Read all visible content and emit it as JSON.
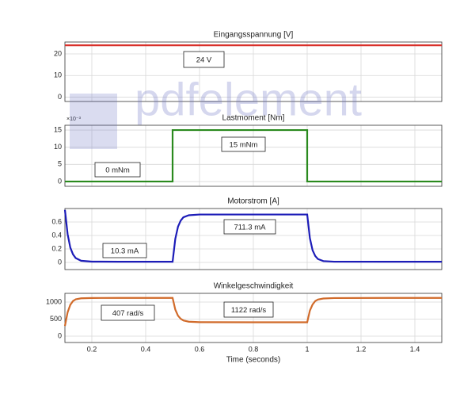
{
  "watermark": "pdfelement",
  "chart_data": [
    {
      "type": "line",
      "title": "Eingangsspannung [V]",
      "xlim": [
        0.1,
        1.5
      ],
      "xticks": [
        0.2,
        0.4,
        0.6,
        0.8,
        1,
        1.2,
        1.4
      ],
      "ylim": [
        -2,
        25.5
      ],
      "yticks": [
        0,
        10,
        20
      ],
      "grid": true,
      "x": [
        0.1,
        1.5
      ],
      "series": [
        {
          "color": "#d9312b",
          "values": [
            24,
            24
          ]
        }
      ],
      "annotations": [
        "24 V"
      ]
    },
    {
      "type": "line",
      "title": "Lastmoment [Nm]",
      "y_exponent": "×10⁻³",
      "xlim": [
        0.1,
        1.5
      ],
      "xticks": [
        0.2,
        0.4,
        0.6,
        0.8,
        1,
        1.2,
        1.4
      ],
      "ylim": [
        -1.4,
        16.4
      ],
      "yticks": [
        0,
        5,
        10,
        15
      ],
      "grid": true,
      "x": [
        0.1,
        0.5,
        0.5,
        1.0,
        1.0,
        1.5
      ],
      "series": [
        {
          "color": "#2a8a1e",
          "values": [
            0,
            0,
            15,
            15,
            0,
            0
          ]
        }
      ],
      "annotations": [
        "15 mNm",
        "0 mNm"
      ]
    },
    {
      "type": "line",
      "title": "Motorstrom [A]",
      "xlim": [
        0.1,
        1.5
      ],
      "xticks": [
        0.2,
        0.4,
        0.6,
        0.8,
        1,
        1.2,
        1.4
      ],
      "ylim": [
        -0.106,
        0.8
      ],
      "yticks": [
        0,
        0.2,
        0.4,
        0.6
      ],
      "grid": true,
      "x": [
        0.1,
        0.11,
        0.12,
        0.13,
        0.14,
        0.16,
        0.2,
        0.3,
        0.5,
        0.51,
        0.52,
        0.53,
        0.54,
        0.56,
        0.6,
        0.8,
        1.0,
        1.01,
        1.02,
        1.03,
        1.04,
        1.06,
        1.1,
        1.3,
        1.5
      ],
      "series": [
        {
          "color": "#1c1cb8",
          "values": [
            0.78,
            0.42,
            0.22,
            0.12,
            0.065,
            0.025,
            0.012,
            0.0103,
            0.0103,
            0.35,
            0.53,
            0.62,
            0.67,
            0.7,
            0.711,
            0.711,
            0.711,
            0.36,
            0.18,
            0.095,
            0.05,
            0.02,
            0.011,
            0.0103,
            0.0103
          ]
        }
      ],
      "annotations": [
        "711.3 mA",
        "10.3 mA"
      ]
    },
    {
      "type": "line",
      "title": "Winkelgeschwindigkeit",
      "xlabel": "Time (seconds)",
      "xlim": [
        0.1,
        1.5
      ],
      "xticks": [
        0.2,
        0.4,
        0.6,
        0.8,
        1,
        1.2,
        1.4
      ],
      "ylim": [
        -186,
        1256
      ],
      "yticks": [
        0,
        500,
        1000
      ],
      "grid": true,
      "x": [
        0.1,
        0.11,
        0.12,
        0.13,
        0.14,
        0.16,
        0.2,
        0.3,
        0.5,
        0.51,
        0.52,
        0.53,
        0.54,
        0.56,
        0.6,
        0.8,
        1.0,
        1.01,
        1.02,
        1.03,
        1.04,
        1.06,
        1.1,
        1.3,
        1.5
      ],
      "series": [
        {
          "color": "#d16b2b",
          "values": [
            300,
            700,
            920,
            1030,
            1080,
            1110,
            1120,
            1122,
            1122,
            780,
            600,
            510,
            460,
            425,
            410,
            407,
            407,
            750,
            930,
            1030,
            1075,
            1105,
            1118,
            1122,
            1122
          ]
        }
      ],
      "annotations": [
        "1122 rad/s",
        "407 rad/s"
      ]
    }
  ]
}
